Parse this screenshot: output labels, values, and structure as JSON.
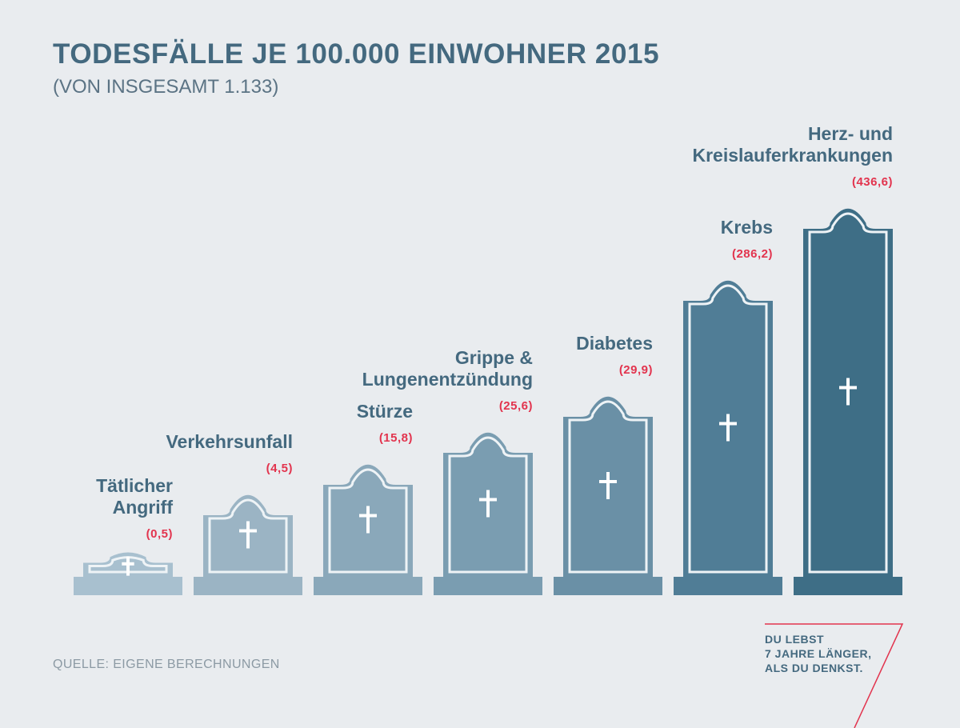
{
  "title": "TODESFÄLLE JE 100.000 EINWOHNER 2015",
  "subtitle": "(VON INSGESAMT 1.133)",
  "source": "QUELLE: EIGENE BERECHNUNGEN",
  "slogan": [
    "DU LEBST",
    "7 JAHRE LÄNGER,",
    "ALS DU DENKST."
  ],
  "colors": {
    "background": "#e9ecef",
    "text": "#44697f",
    "value": "#e2344e",
    "stones": [
      "#a8c0cf",
      "#9bb4c4",
      "#8aa8ba",
      "#7a9db1",
      "#6a90a6",
      "#507d96",
      "#3e6e86"
    ]
  },
  "chart_data": {
    "type": "bar",
    "categories": [
      [
        "Tätlicher",
        "Angriff"
      ],
      [
        "Verkehrsunfall"
      ],
      [
        "Stürze"
      ],
      [
        "Grippe &",
        "Lungenentzündung"
      ],
      [
        "Diabetes"
      ],
      [
        "Krebs"
      ],
      [
        "Herz- und",
        "Kreislauferkrankungen"
      ]
    ],
    "values": [
      0.5,
      4.5,
      15.8,
      25.6,
      29.9,
      286.2,
      436.6
    ],
    "value_labels": [
      "(0,5)",
      "(4,5)",
      "(15,8)",
      "(25,6)",
      "(29,9)",
      "(286,2)",
      "(436,6)"
    ],
    "title": "TODESFÄLLE JE 100.000 EINWOHNER 2015",
    "subtitle": "(VON INSGESAMT 1.133)"
  }
}
